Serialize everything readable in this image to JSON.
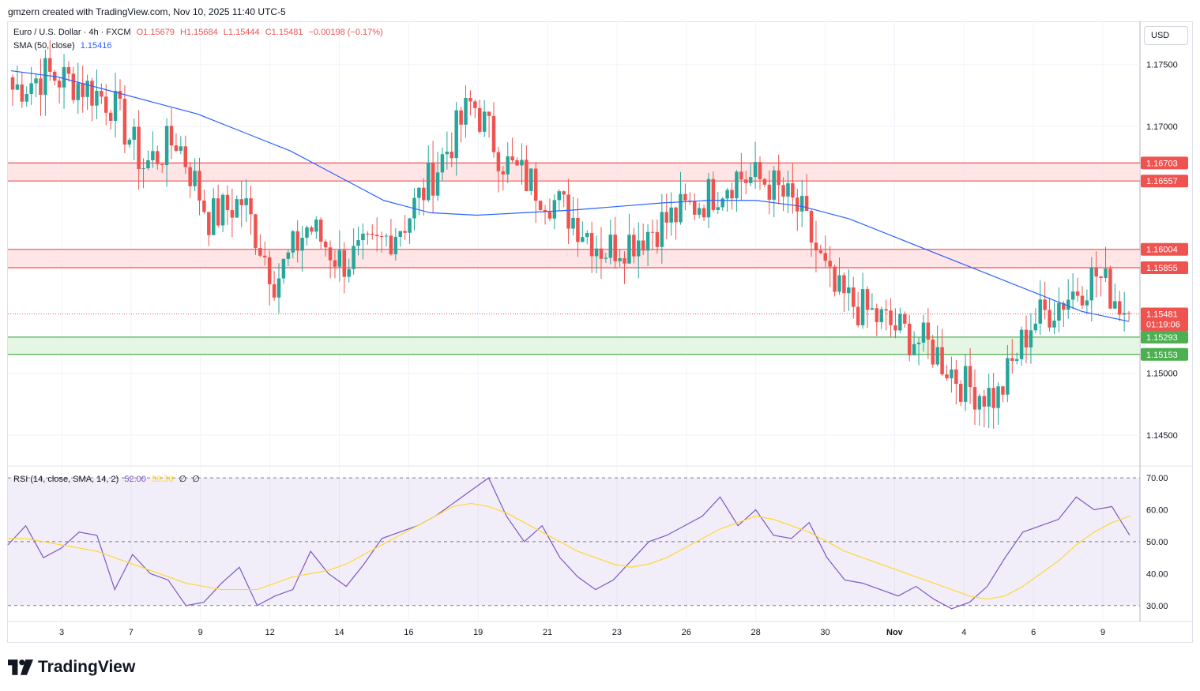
{
  "credit": "gmzern created with TradingView.com, Nov 10, 2025 11:40 UTC-5",
  "legend": {
    "symbol": "Euro / U.S. Dollar · 4h · FXCM",
    "open": "O1.15679",
    "high": "H1.15684",
    "low": "L1.15444",
    "close": "C1.15481",
    "change": "−0.00198 (−0.17%)",
    "sma_label": "SMA (50, close)",
    "sma_value": "1.15416",
    "rsi_label": "RSI (14, close, SMA, 14, 2)",
    "rsi_value": "52.00",
    "rsi_ma_value": "58.36",
    "rsi_extra1": "∅",
    "rsi_extra2": "∅"
  },
  "currency_button": "USD",
  "brand": "TradingView",
  "colors": {
    "up": "#26a69a",
    "down": "#ef5350",
    "sma": "#2962ff",
    "rsi": "#7e57c2",
    "rsi_ma": "#fdd835",
    "resistance_zone": "#ffe1e1",
    "support_zone": "#e2f5e0"
  },
  "chart_data": [
    {
      "type": "candlestick",
      "title": "Euro / U.S. Dollar · 4h · FXCM",
      "ylim": [
        1.1425,
        1.1785
      ],
      "y_ticks": [
        "1.14500",
        "1.15000",
        "1.17000",
        "1.17500"
      ],
      "x_tick_labels": [
        "3",
        "7",
        "9",
        "12",
        "14",
        "16",
        "19",
        "21",
        "23",
        "26",
        "28",
        "30",
        "Nov",
        "4",
        "6",
        "9"
      ],
      "horizontal_levels": [
        {
          "value": 1.16703,
          "label": "1.16703",
          "color": "#ef5350"
        },
        {
          "value": 1.16557,
          "label": "1.16557",
          "color": "#ef5350"
        },
        {
          "value": 1.16004,
          "label": "1.16004",
          "color": "#ef5350"
        },
        {
          "value": 1.15855,
          "label": "1.15855",
          "color": "#ef5350"
        },
        {
          "value": 1.15293,
          "label": "1.15293",
          "color": "#4caf50"
        },
        {
          "value": 1.15153,
          "label": "1.15153",
          "color": "#4caf50"
        }
      ],
      "zones": [
        {
          "from": 1.16557,
          "to": 1.16703,
          "kind": "resistance"
        },
        {
          "from": 1.15855,
          "to": 1.16004,
          "kind": "resistance"
        },
        {
          "from": 1.15153,
          "to": 1.15293,
          "kind": "support"
        }
      ],
      "last_price": {
        "value": 1.15481,
        "label": "1.15481",
        "countdown": "01:19:06"
      },
      "close_path": [
        {
          "x": "Oct 1",
          "y": 1.173
        },
        {
          "x": "Oct 2",
          "y": 1.1742
        },
        {
          "x": "Oct 3",
          "y": 1.1735
        },
        {
          "x": "Oct 5",
          "y": 1.172
        },
        {
          "x": "Oct 6",
          "y": 1.1668
        },
        {
          "x": "Oct 7",
          "y": 1.169
        },
        {
          "x": "Oct 8",
          "y": 1.1625
        },
        {
          "x": "Oct 9",
          "y": 1.164
        },
        {
          "x": "Oct 10",
          "y": 1.1575
        },
        {
          "x": "Oct 12",
          "y": 1.162
        },
        {
          "x": "Oct 13",
          "y": 1.159
        },
        {
          "x": "Oct 14",
          "y": 1.16
        },
        {
          "x": "Oct 15",
          "y": 1.1625
        },
        {
          "x": "Oct 16",
          "y": 1.167
        },
        {
          "x": "Oct 17",
          "y": 1.172
        },
        {
          "x": "Oct 19",
          "y": 1.167
        },
        {
          "x": "Oct 20",
          "y": 1.165
        },
        {
          "x": "Oct 21",
          "y": 1.1628
        },
        {
          "x": "Oct 22",
          "y": 1.16
        },
        {
          "x": "Oct 23",
          "y": 1.161
        },
        {
          "x": "Oct 24",
          "y": 1.1625
        },
        {
          "x": "Oct 26",
          "y": 1.164
        },
        {
          "x": "Oct 27",
          "y": 1.166
        },
        {
          "x": "Oct 28",
          "y": 1.1655
        },
        {
          "x": "Oct 29",
          "y": 1.163
        },
        {
          "x": "Oct 30",
          "y": 1.1565
        },
        {
          "x": "Oct 31",
          "y": 1.155
        },
        {
          "x": "Nov 2",
          "y": 1.1535
        },
        {
          "x": "Nov 3",
          "y": 1.152
        },
        {
          "x": "Nov 4",
          "y": 1.149
        },
        {
          "x": "Nov 5",
          "y": 1.148
        },
        {
          "x": "Nov 6",
          "y": 1.154
        },
        {
          "x": "Nov 7",
          "y": 1.156
        },
        {
          "x": "Nov 9",
          "y": 1.158
        },
        {
          "x": "Nov 10",
          "y": 1.15481
        }
      ],
      "sma50": [
        1.1745,
        1.174,
        1.173,
        1.172,
        1.171,
        1.1695,
        1.168,
        1.166,
        1.164,
        1.163,
        1.1628,
        1.163,
        1.1632,
        1.1635,
        1.1638,
        1.164,
        1.164,
        1.1635,
        1.1625,
        1.161,
        1.1595,
        1.158,
        1.1565,
        1.155,
        1.1542
      ]
    },
    {
      "type": "line",
      "title": "RSI (14, close, SMA, 14, 2)",
      "ylim": [
        25,
        72
      ],
      "y_ticks": [
        "30.00",
        "40.00",
        "50.00",
        "60.00",
        "70.00"
      ],
      "bands": {
        "upper": 70,
        "middle": 50,
        "lower": 30
      },
      "rsi": [
        49,
        55,
        45,
        48,
        53,
        52,
        35,
        46,
        40,
        38,
        30,
        31,
        37,
        42,
        30,
        33,
        35,
        47,
        40,
        36,
        43,
        51,
        53,
        55,
        58,
        62,
        66,
        70,
        58,
        50,
        55,
        45,
        39,
        35,
        38,
        44,
        50,
        52,
        55,
        58,
        64,
        55,
        60,
        52,
        51,
        56,
        45,
        38,
        37,
        35,
        33,
        36,
        32,
        29,
        31,
        36,
        45,
        53,
        55,
        57,
        64,
        60,
        61,
        52
      ],
      "rsi_ma": [
        51,
        51,
        50,
        49,
        48,
        47,
        45,
        43,
        41,
        39,
        37,
        36,
        35,
        35,
        35,
        37,
        39,
        40,
        41,
        43,
        46,
        49,
        52,
        55,
        58,
        61,
        62,
        61,
        59,
        56,
        53,
        50,
        47,
        45,
        43,
        42,
        43,
        45,
        48,
        51,
        54,
        56,
        58,
        57,
        55,
        53,
        50,
        47,
        45,
        43,
        41,
        39,
        37,
        35,
        33,
        32,
        33,
        36,
        40,
        44,
        49,
        53,
        56,
        58
      ]
    }
  ]
}
